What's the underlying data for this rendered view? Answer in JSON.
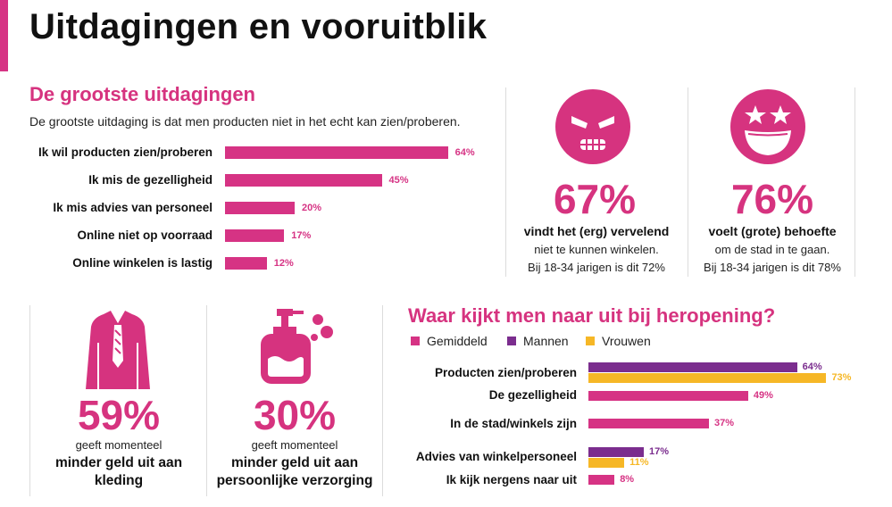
{
  "title": "Uitdagingen en vooruitblik",
  "colors": {
    "accent": "#d63384",
    "purple": "#7b2d8e",
    "yellow": "#f6b726"
  },
  "challenges": {
    "heading": "De grootste uitdagingen",
    "subtitle": "De grootste uitdaging is dat men producten niet in het echt kan zien/proberen."
  },
  "stats": {
    "annoyed": {
      "icon": "angry-face-icon",
      "value": "67%",
      "line1": "vindt het (erg) vervelend",
      "line2": "niet te kunnen winkelen.",
      "line3": "Bij 18-34 jarigen is dit 72%"
    },
    "need": {
      "icon": "star-eyes-face-icon",
      "value": "76%",
      "line1": "voelt (grote) behoefte",
      "line2": "om de stad in te gaan.",
      "line3": "Bij 18-34 jarigen is dit 78%"
    },
    "clothing": {
      "icon": "suit-icon",
      "value": "59%",
      "line1": "geeft momenteel",
      "line2": "minder geld uit aan",
      "line3": "kleding"
    },
    "care": {
      "icon": "soap-bottle-icon",
      "value": "30%",
      "line1": "geeft momenteel",
      "line2": "minder geld uit aan",
      "line3": "persoonlijke verzorging"
    }
  },
  "reopening": {
    "heading": "Waar kijkt men naar uit bij heropening?"
  },
  "chart_data": [
    {
      "type": "bar",
      "orientation": "horizontal",
      "title": "De grootste uitdagingen",
      "categories": [
        "Ik wil producten zien/proberen",
        "Ik mis de gezelligheid",
        "Ik mis advies van personeel",
        "Online niet op voorraad",
        "Online winkelen is lastig"
      ],
      "values": [
        64,
        45,
        20,
        17,
        12
      ],
      "labels": [
        "64%",
        "45%",
        "20%",
        "17%",
        "12%"
      ],
      "xlim": [
        0,
        100
      ]
    },
    {
      "type": "bar",
      "orientation": "horizontal",
      "title": "Waar kijkt men naar uit bij heropening?",
      "legend": [
        "Gemiddeld",
        "Mannen",
        "Vrouwen"
      ],
      "legend_position": "top-left",
      "categories": [
        "Producten zien/proberen",
        "De gezelligheid",
        "In de stad/winkels zijn",
        "Advies van winkelpersoneel",
        "Ik kijk nergens naar uit"
      ],
      "bars": [
        [
          {
            "series": "Mannen",
            "value": 64,
            "label": "64%"
          },
          {
            "series": "Vrouwen",
            "value": 73,
            "label": "73%"
          }
        ],
        [
          {
            "series": "Gemiddeld",
            "value": 49,
            "label": "49%"
          }
        ],
        [
          {
            "series": "Gemiddeld",
            "value": 37,
            "label": "37%"
          }
        ],
        [
          {
            "series": "Mannen",
            "value": 17,
            "label": "17%"
          },
          {
            "series": "Vrouwen",
            "value": 11,
            "label": "11%"
          }
        ],
        [
          {
            "series": "Gemiddeld",
            "value": 8,
            "label": "8%"
          }
        ]
      ],
      "xlim": [
        0,
        100
      ]
    }
  ]
}
